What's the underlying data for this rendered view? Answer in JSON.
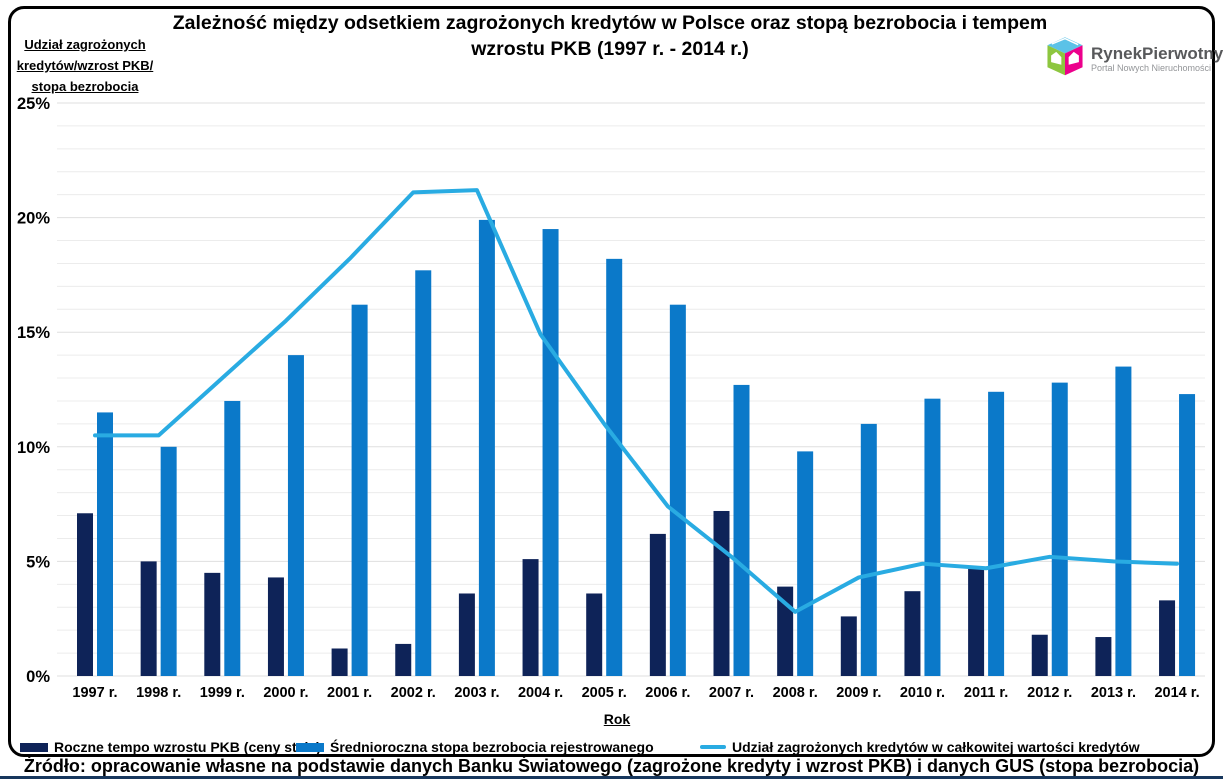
{
  "header": {
    "title_lines": [
      "Zależność między odsetkiem zagrożonych kredytów w Polsce oraz stopą bezrobocia i tempem",
      "wzrostu PKB (1997 r. - 2014 r.)"
    ]
  },
  "y_axis_label_lines": [
    "Udział zagrożonych",
    "kredytów/wzrost PKB/",
    "stopa bezrobocia"
  ],
  "x_axis_label": "Rok",
  "logo": {
    "name": "RynekPierwotny",
    "subtitle": "Portal Nowych Nieruchomości"
  },
  "source_note": "Źródło: opracowanie własne na podstawie danych Banku Światowego (zagrożone kredyty i wzrost PKB) i danych GUS (stopa bezrobocia)",
  "colors": {
    "gdp": "#0e2358",
    "unemployment": "#0b79c9",
    "npl_line": "#29abe2",
    "grid_minor": "#ececec",
    "grid_major": "#dfdfdf",
    "bottom_rule": "#17375d"
  },
  "chart_data": {
    "type": "bar+line",
    "categories": [
      "1997 r.",
      "1998 r.",
      "1999 r.",
      "2000 r.",
      "2001 r.",
      "2002 r.",
      "2003 r.",
      "2004 r.",
      "2005 r.",
      "2006 r.",
      "2007 r.",
      "2008 r.",
      "2009 r.",
      "2010 r.",
      "2011 r.",
      "2012 r.",
      "2013 r.",
      "2014 r."
    ],
    "series": [
      {
        "name": "Roczne tempo wzrostu PKB (ceny stałe)",
        "type": "bar",
        "color_key": "gdp",
        "values": [
          7.1,
          5.0,
          4.5,
          4.3,
          1.2,
          1.4,
          3.6,
          5.1,
          3.6,
          6.2,
          7.2,
          3.9,
          2.6,
          3.7,
          4.7,
          1.8,
          1.7,
          3.3
        ]
      },
      {
        "name": "Średnioroczna stopa bezrobocia rejestrowanego",
        "type": "bar",
        "color_key": "unemployment",
        "values": [
          11.5,
          10.0,
          12.0,
          14.0,
          16.2,
          17.7,
          19.9,
          19.5,
          18.2,
          16.2,
          12.7,
          9.8,
          11.0,
          12.1,
          12.4,
          12.8,
          13.5,
          12.3
        ]
      },
      {
        "name": "Udział zagrożonych kredytów w całkowitej wartości kredytów",
        "type": "line",
        "color_key": "npl_line",
        "values": [
          10.5,
          10.5,
          13.0,
          15.5,
          18.2,
          21.1,
          21.2,
          14.9,
          11.0,
          7.4,
          5.2,
          2.8,
          4.3,
          4.9,
          4.7,
          5.2,
          5.0,
          4.9
        ]
      }
    ],
    "xlabel": "Rok",
    "ylim": [
      0,
      25
    ],
    "yticks": [
      0,
      5,
      10,
      15,
      20,
      25
    ],
    "ytick_suffix": "%",
    "grid": "horizontal every 1%, light gray",
    "legend_position": "bottom"
  }
}
